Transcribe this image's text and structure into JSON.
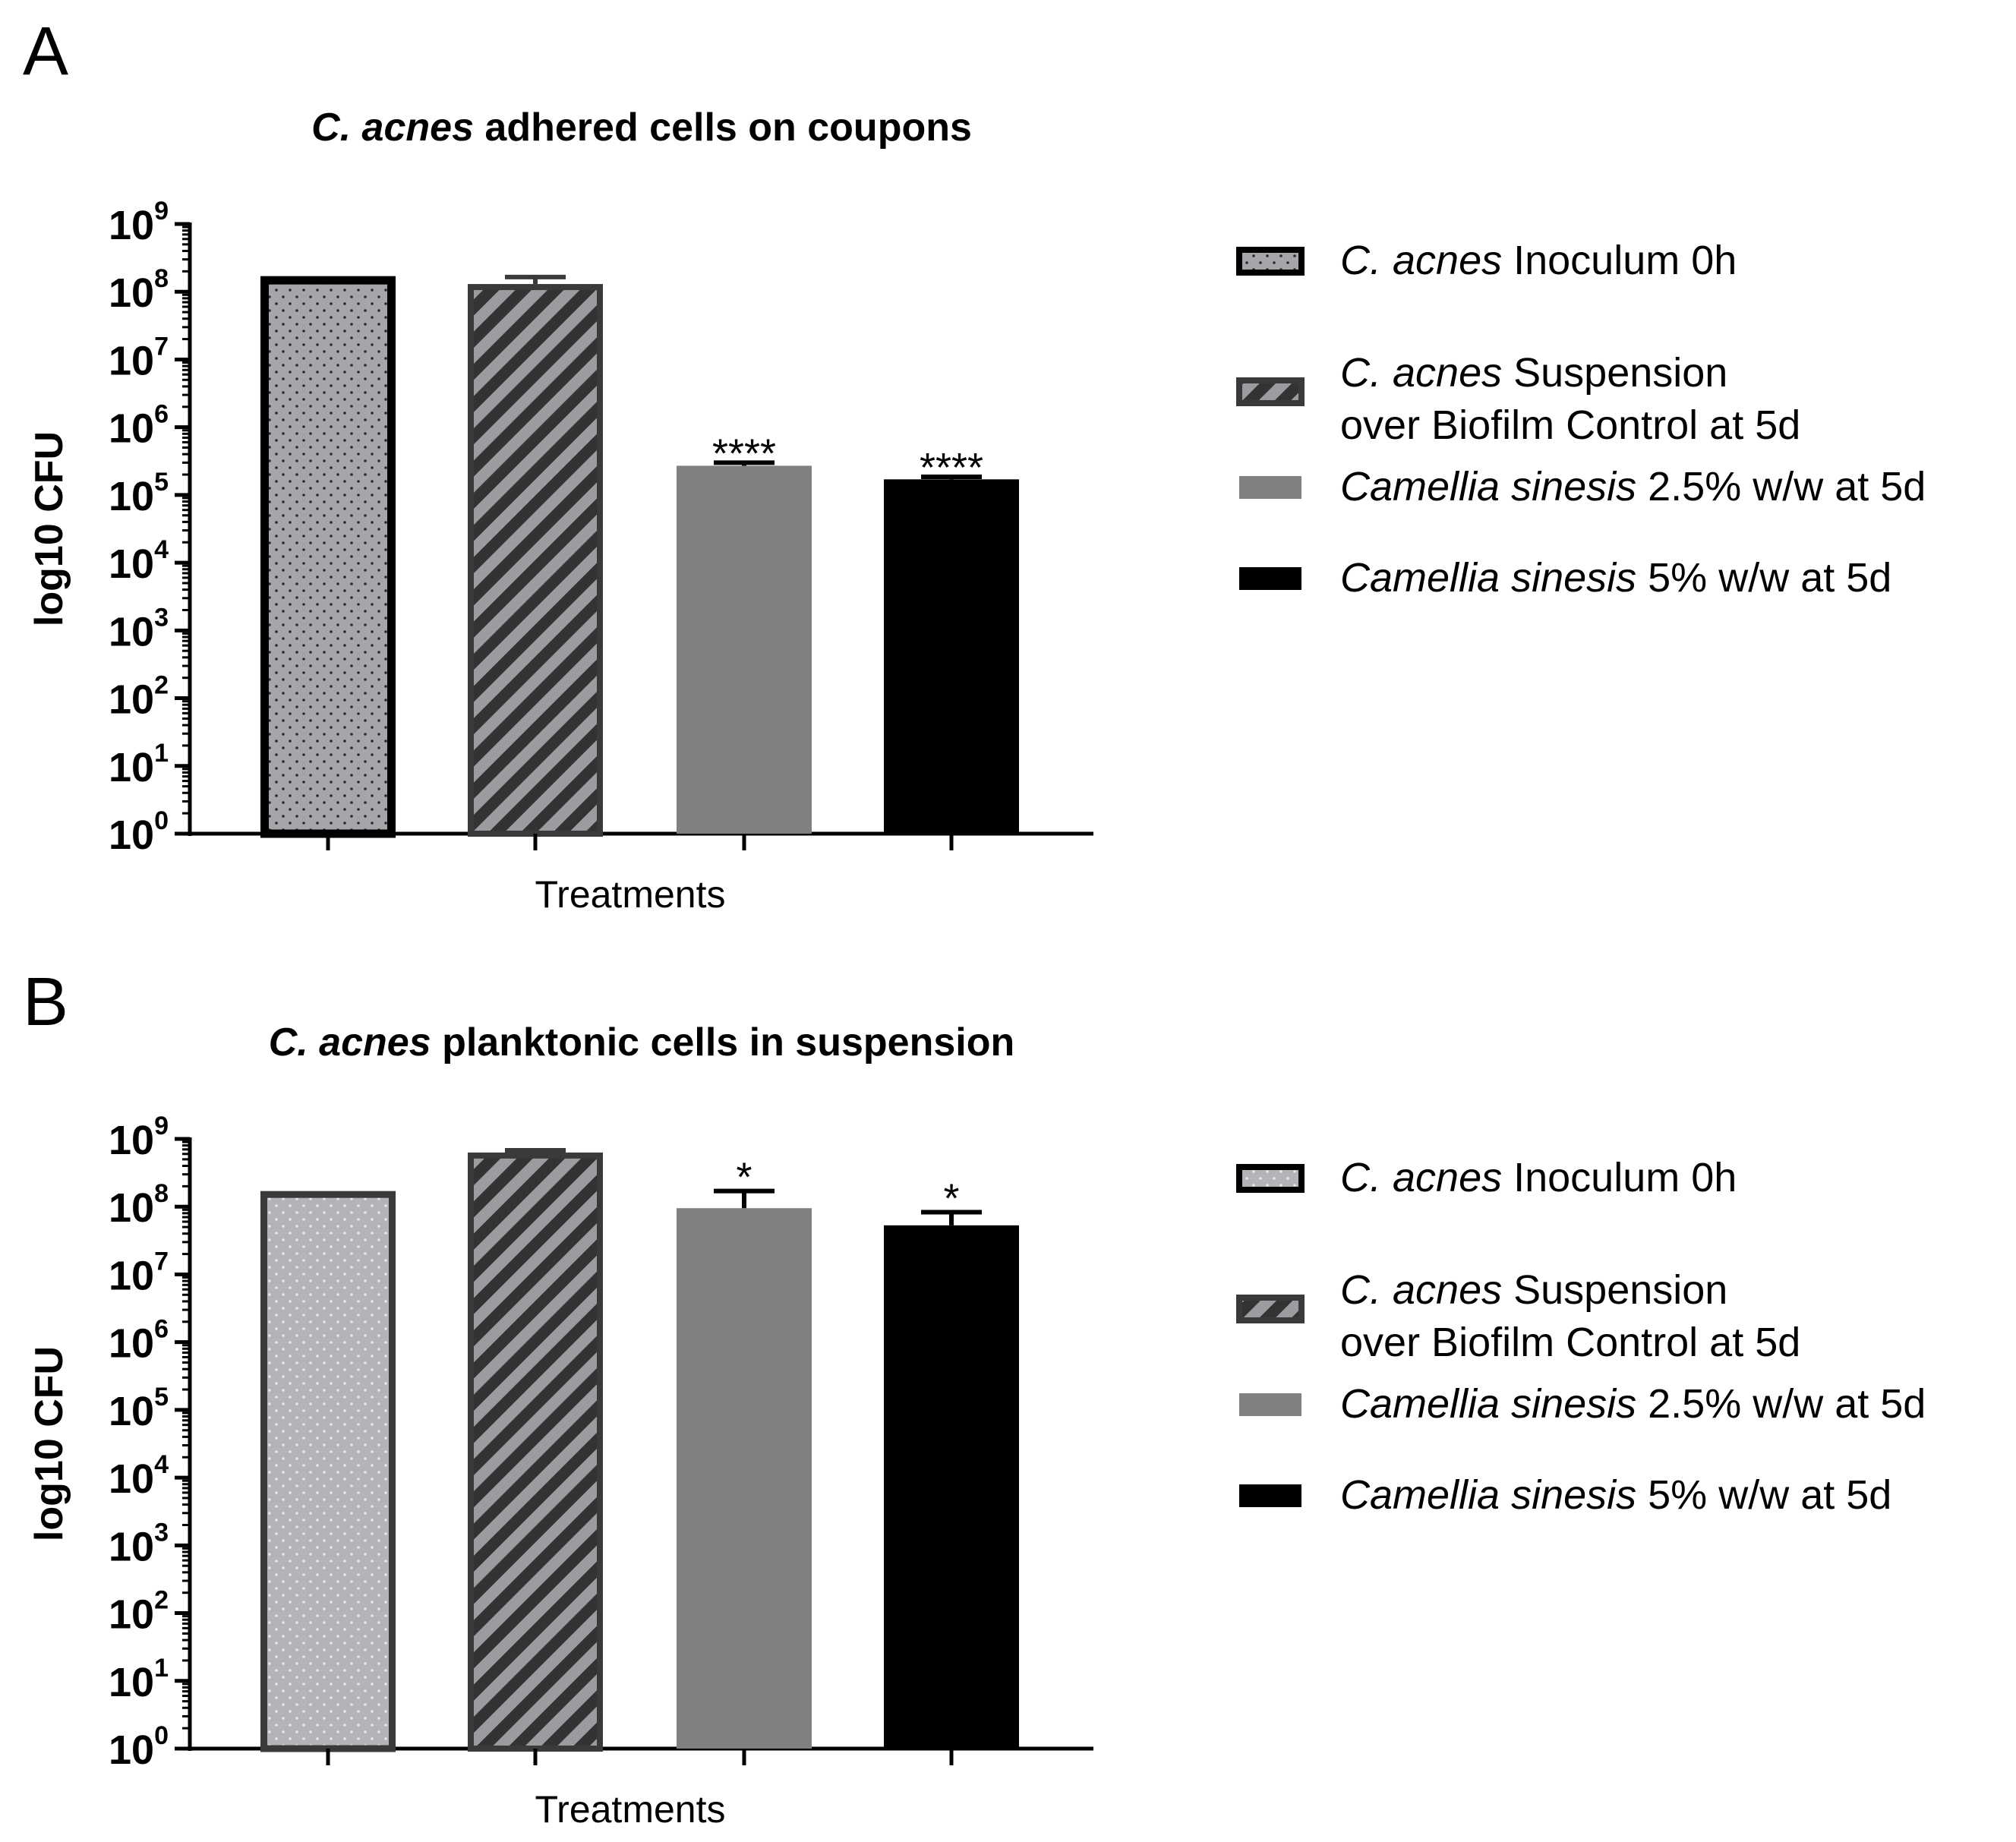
{
  "colors": {
    "inoculum_fill": "#a6a6aa",
    "inoculum_edge": "#000000",
    "suspension_fill": "#9c9ca0",
    "suspension_edge": "#3a3a3a",
    "suspension_stripe": "#333333",
    "sinesis25_fill": "#808080",
    "sinesis5_fill": "#000000",
    "axis": "#000000"
  },
  "chart_data": [
    {
      "panel_label": "A",
      "type": "bar",
      "title_italic": "C. acnes",
      "title_rest": " adhered cells on coupons",
      "xlabel": "Treatments",
      "ylabel": "log10 CFU",
      "yscale": "log",
      "ylim": [
        1,
        1000000000
      ],
      "yticks": [
        {
          "base": "10",
          "exp": "0"
        },
        {
          "base": "10",
          "exp": "1"
        },
        {
          "base": "10",
          "exp": "2"
        },
        {
          "base": "10",
          "exp": "3"
        },
        {
          "base": "10",
          "exp": "4"
        },
        {
          "base": "10",
          "exp": "5"
        },
        {
          "base": "10",
          "exp": "6"
        },
        {
          "base": "10",
          "exp": "7"
        },
        {
          "base": "10",
          "exp": "8"
        },
        {
          "base": "10",
          "exp": "9"
        }
      ],
      "bars": [
        {
          "name": "C. acnes Inoculum 0h",
          "value": 170000000,
          "error": 0,
          "sig": ""
        },
        {
          "name": "C. acnes Suspension over Biofilm Control at 5d",
          "value": 130000000,
          "error": 35000000,
          "sig": ""
        },
        {
          "name": "Camellia sinesis 2.5% w/w at 5d",
          "value": 270000.0,
          "error": 30000,
          "sig": "****"
        },
        {
          "name": "Camellia sinesis 5% w/w at 5d",
          "value": 170000,
          "error": 15000,
          "sig": "****"
        }
      ],
      "legend": [
        {
          "italic": "C. acnes",
          "rest": " Inoculum 0h",
          "line2": ""
        },
        {
          "italic": "C. acnes",
          "rest": " Suspension",
          "line2": " over Biofilm Control at 5d"
        },
        {
          "italic": "Camellia sinesis",
          "rest": "  2.5% w/w at 5d",
          "line2": ""
        },
        {
          "italic": "Camellia sinesis",
          "rest": "  5% w/w at 5d",
          "line2": ""
        }
      ]
    },
    {
      "panel_label": "B",
      "type": "bar",
      "title_italic": "C. acnes",
      "title_rest": " planktonic cells in suspension",
      "xlabel": "Treatments",
      "ylabel": "log10 CFU",
      "yscale": "log",
      "ylim": [
        1,
        1000000000
      ],
      "yticks": [
        {
          "base": "10",
          "exp": "0"
        },
        {
          "base": "10",
          "exp": "1"
        },
        {
          "base": "10",
          "exp": "2"
        },
        {
          "base": "10",
          "exp": "3"
        },
        {
          "base": "10",
          "exp": "4"
        },
        {
          "base": "10",
          "exp": "5"
        },
        {
          "base": "10",
          "exp": "6"
        },
        {
          "base": "10",
          "exp": "7"
        },
        {
          "base": "10",
          "exp": "8"
        },
        {
          "base": "10",
          "exp": "9"
        }
      ],
      "bars": [
        {
          "name": "C. acnes Inoculum 0h",
          "value": 170000000,
          "error": 0,
          "sig": ""
        },
        {
          "name": "C. acnes Suspension over Biofilm Control at 5d",
          "value": 630000000,
          "error": 50000000,
          "sig": ""
        },
        {
          "name": "Camellia sinesis 2.5% w/w at 5d",
          "value": 95000000,
          "error": 75000000,
          "sig": "*"
        },
        {
          "name": "Camellia sinesis 5% w/w at 5d",
          "value": 53000000,
          "error": 30000000,
          "sig": "*"
        }
      ],
      "legend": [
        {
          "italic": "C. acnes",
          "rest": " Inoculum 0h",
          "line2": ""
        },
        {
          "italic": "C. acnes",
          "rest": " Suspension",
          "line2": " over Biofilm Control at 5d"
        },
        {
          "italic": "Camellia sinesis",
          "rest": "  2.5% w/w at 5d",
          "line2": ""
        },
        {
          "italic": "Camellia sinesis",
          "rest": "  5% w/w at 5d",
          "line2": ""
        }
      ]
    }
  ]
}
